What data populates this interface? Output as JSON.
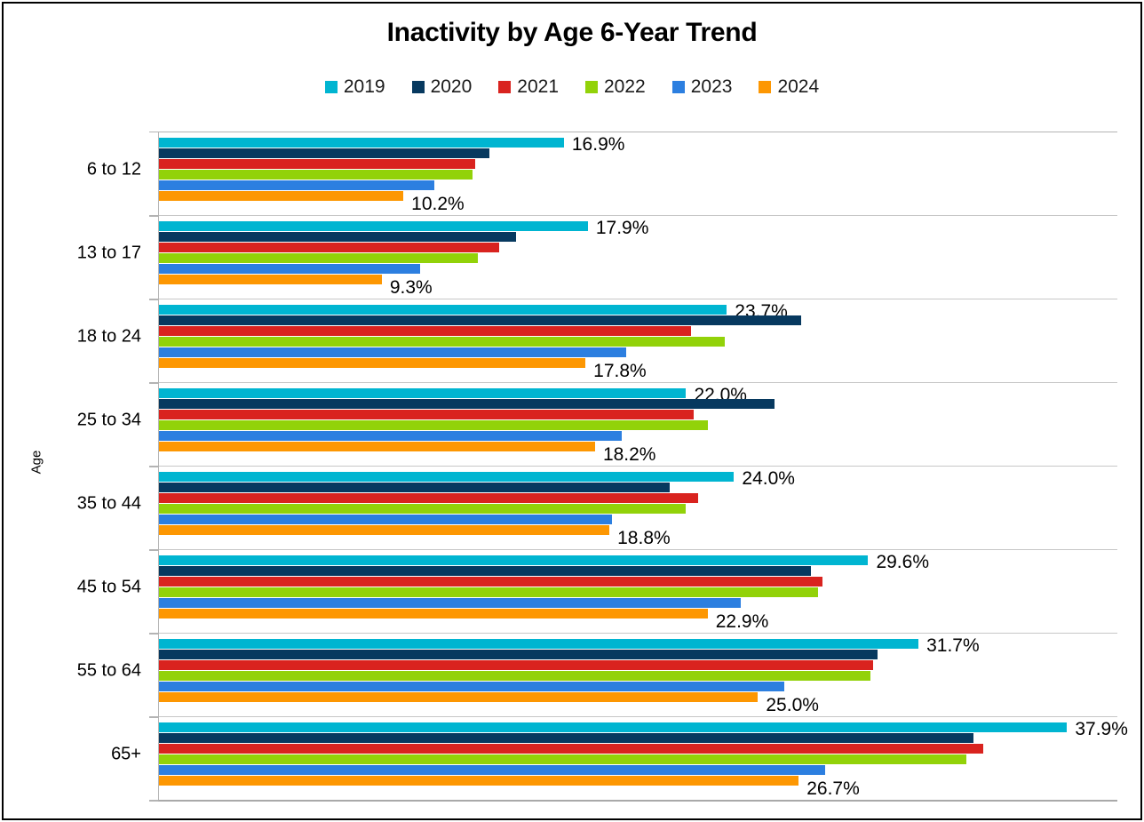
{
  "title": "Inactivity by Age 6-Year Trend",
  "y_axis_title": "Age",
  "chart_data": {
    "type": "bar",
    "orientation": "horizontal",
    "title": "Inactivity by Age 6-Year Trend",
    "xlabel": "",
    "ylabel": "Age",
    "xlim": [
      0,
      40
    ],
    "grid": "horizontal category separators only, no x-axis tick labels",
    "legend_position": "top",
    "value_suffix": "%",
    "categories": [
      "6 to 12",
      "13 to 17",
      "18 to 24",
      "25 to 34",
      "35 to 44",
      "45 to 54",
      "55 to 64",
      "65+"
    ],
    "series": [
      {
        "name": "2019",
        "color": "#00b5d1",
        "show_labels": true,
        "values": [
          16.9,
          17.9,
          23.7,
          22.0,
          24.0,
          29.6,
          31.7,
          37.9
        ]
      },
      {
        "name": "2020",
        "color": "#07395f",
        "show_labels": false,
        "values": [
          13.8,
          14.9,
          26.8,
          25.7,
          21.3,
          27.2,
          30.0,
          34.0
        ]
      },
      {
        "name": "2021",
        "color": "#d9231f",
        "show_labels": false,
        "values": [
          13.2,
          14.2,
          22.2,
          22.3,
          22.5,
          27.7,
          29.8,
          34.4
        ]
      },
      {
        "name": "2022",
        "color": "#92d209",
        "show_labels": false,
        "values": [
          13.1,
          13.3,
          23.6,
          22.9,
          22.0,
          27.5,
          29.7,
          33.7
        ]
      },
      {
        "name": "2023",
        "color": "#2c7fe0",
        "show_labels": false,
        "values": [
          11.5,
          10.9,
          19.5,
          19.3,
          18.9,
          24.3,
          26.1,
          27.8
        ]
      },
      {
        "name": "2024",
        "color": "#fd9702",
        "show_labels": true,
        "values": [
          10.2,
          9.3,
          17.8,
          18.2,
          18.8,
          22.9,
          25.0,
          26.7
        ]
      }
    ],
    "data_labels": {
      "2019": [
        "16.9%",
        "17.9%",
        "23.7%",
        "22.0%",
        "24.0%",
        "29.6%",
        "31.7%",
        "37.9%"
      ],
      "2024": [
        "10.2%",
        "9.3%",
        "17.8%",
        "18.2%",
        "18.8%",
        "22.9%",
        "25.0%",
        "26.7%"
      ]
    }
  }
}
